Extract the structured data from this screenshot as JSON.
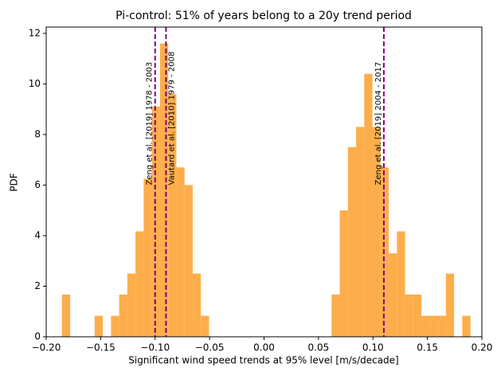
{
  "chart_data": {
    "type": "histogram",
    "title": "Pi-control: 51% of years belong to a 20y trend period",
    "x_label": "Significant wind speed trends at 95% level [m/s/decade]",
    "y_label": "PDF",
    "color": "#fdae4b",
    "bins": [
      -0.1855,
      -0.178,
      -0.1705,
      -0.163,
      -0.1555,
      -0.148,
      -0.1405,
      -0.133,
      -0.1255,
      -0.118,
      -0.1105,
      -0.103,
      -0.0955,
      -0.088,
      -0.0805,
      -0.073,
      -0.0655,
      -0.058,
      -0.0505,
      -0.043,
      -0.0355,
      -0.028,
      -0.0205,
      -0.013,
      -0.0055,
      0.002,
      0.0095,
      0.017,
      0.0245,
      0.032,
      0.0395,
      0.047,
      0.0545,
      0.062,
      0.0695,
      0.077,
      0.0845,
      0.092,
      0.0995,
      0.107,
      0.1145,
      0.122,
      0.1295,
      0.137,
      0.1445,
      0.152,
      0.1595,
      0.167,
      0.1745,
      0.182,
      0.1895
    ],
    "values": [
      1.67,
      0,
      0,
      0,
      0.83,
      0,
      0.83,
      1.67,
      2.5,
      4.17,
      6.25,
      9.1,
      11.6,
      9.6,
      6.7,
      6.0,
      2.5,
      0.83,
      0,
      0,
      0,
      0,
      0,
      0,
      0,
      0,
      0,
      0,
      0,
      0,
      0,
      0,
      0,
      1.67,
      5.0,
      7.5,
      8.3,
      10.4,
      8.3,
      6.7,
      3.3,
      4.17,
      1.67,
      1.67,
      0.83,
      0.83,
      0.83,
      2.5,
      0,
      0.83
    ],
    "xlim": [
      -0.2,
      0.2
    ],
    "ylim": [
      0,
      12.25
    ],
    "xticks": [
      {
        "value": -0.2,
        "label": "−0.20"
      },
      {
        "value": -0.15,
        "label": "−0.15"
      },
      {
        "value": -0.1,
        "label": "−0.10"
      },
      {
        "value": -0.05,
        "label": "−0.05"
      },
      {
        "value": 0,
        "label": "0.00"
      },
      {
        "value": 0.05,
        "label": "0.05"
      },
      {
        "value": 0.1,
        "label": "0.10"
      },
      {
        "value": 0.15,
        "label": "0.15"
      },
      {
        "value": 0.2,
        "label": "0.20"
      }
    ],
    "yticks": [
      0,
      2,
      4,
      6,
      8,
      10,
      12
    ],
    "vlines": [
      {
        "x": -0.1,
        "label": "Zeng et al. [2019] 1978 - 2003",
        "side": "left",
        "y": 6
      },
      {
        "x": -0.09,
        "label": "Vautard et al. [2010] 1979 - 2008",
        "side": "right",
        "y": 6
      },
      {
        "x": 0.11,
        "label": "Zeng et al. [2019] 2004 - 2017",
        "side": "left",
        "y": 6
      }
    ],
    "vline_color": "#800080"
  }
}
